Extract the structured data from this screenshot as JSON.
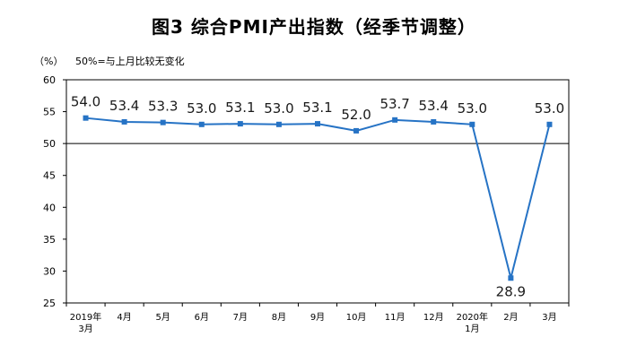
{
  "chart_data": {
    "type": "line",
    "title": "图3 综合PMI产出指数（经季节调整）",
    "ylabel": "（%）",
    "note": "50%=与上月比较无变化",
    "categories": [
      [
        "2019年",
        "3月"
      ],
      [
        "4月"
      ],
      [
        "5月"
      ],
      [
        "6月"
      ],
      [
        "7月"
      ],
      [
        "8月"
      ],
      [
        "9月"
      ],
      [
        "10月"
      ],
      [
        "11月"
      ],
      [
        "12月"
      ],
      [
        "2020年",
        "1月"
      ],
      [
        "2月"
      ],
      [
        "3月"
      ]
    ],
    "series": [
      {
        "values": [
          54.0,
          53.4,
          53.3,
          53.0,
          53.1,
          53.0,
          53.1,
          52.0,
          53.7,
          53.4,
          53.0,
          28.9,
          53.0
        ]
      }
    ],
    "data_labels": [
      "54.0",
      "53.4",
      "53.3",
      "53.0",
      "53.1",
      "53.0",
      "53.1",
      "52.0",
      "53.7",
      "53.4",
      "53.0",
      "28.9",
      "53.0"
    ],
    "yticks": [
      "60",
      "55",
      "50",
      "45",
      "40",
      "35",
      "30",
      "25"
    ],
    "ylim": [
      25,
      60
    ],
    "reference_line": 50,
    "line_color": "#2673c5",
    "legend": "none",
    "grid": false
  }
}
